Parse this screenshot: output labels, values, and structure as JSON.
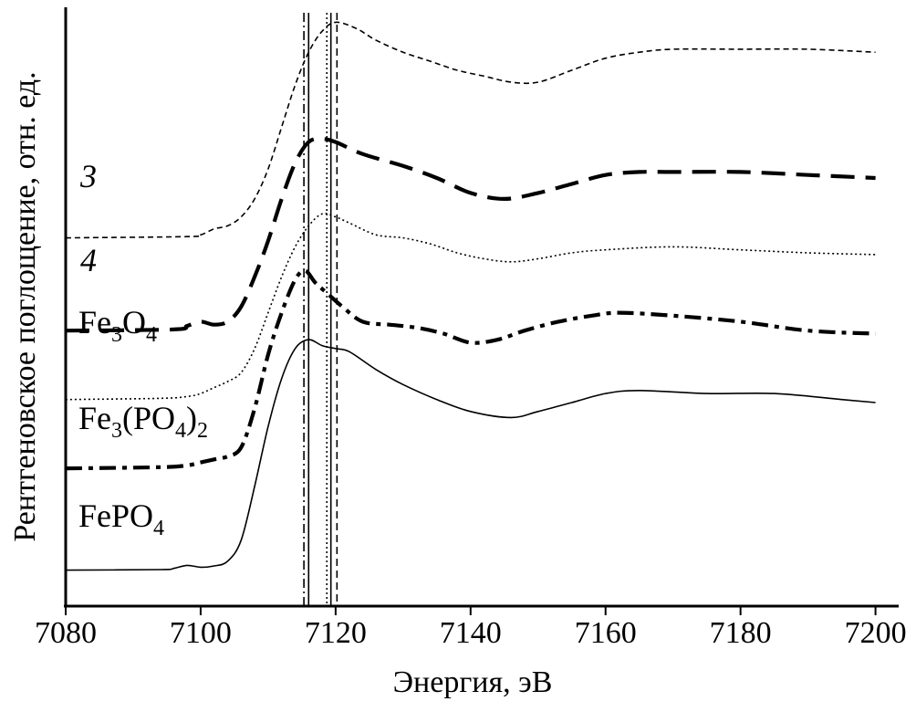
{
  "chart_data": {
    "type": "line",
    "title": "",
    "xlabel": "Энергия, эВ",
    "ylabel": "Рентгеновское поглощение, отн. ед.",
    "xlim": [
      7080,
      7201
    ],
    "xticks": [
      7080,
      7100,
      7120,
      7140,
      7160,
      7180,
      7200
    ],
    "grid": false,
    "legend": "none",
    "colors": {
      "line": "#000000",
      "background": "#ffffff"
    },
    "vertical_lines": [
      {
        "x": 7115.3,
        "style": "dash-dot"
      },
      {
        "x": 7116.0,
        "style": "solid"
      },
      {
        "x": 7118.7,
        "style": "dotted"
      },
      {
        "x": 7119.3,
        "style": "solid"
      },
      {
        "x": 7120.2,
        "style": "dashed"
      }
    ],
    "series": [
      {
        "name": "3",
        "label_style": "italic",
        "style": "short-dash",
        "points": [
          [
            7080,
            0.615
          ],
          [
            7098,
            0.617
          ],
          [
            7100,
            0.62
          ],
          [
            7102,
            0.63
          ],
          [
            7104,
            0.635
          ],
          [
            7106,
            0.65
          ],
          [
            7108,
            0.68
          ],
          [
            7110,
            0.73
          ],
          [
            7112,
            0.8
          ],
          [
            7114,
            0.87
          ],
          [
            7116,
            0.925
          ],
          [
            7118,
            0.96
          ],
          [
            7120,
            0.975
          ],
          [
            7123,
            0.965
          ],
          [
            7126,
            0.945
          ],
          [
            7130,
            0.925
          ],
          [
            7134,
            0.91
          ],
          [
            7138,
            0.895
          ],
          [
            7142,
            0.885
          ],
          [
            7146,
            0.875
          ],
          [
            7150,
            0.875
          ],
          [
            7155,
            0.895
          ],
          [
            7160,
            0.915
          ],
          [
            7165,
            0.925
          ],
          [
            7170,
            0.93
          ],
          [
            7180,
            0.93
          ],
          [
            7190,
            0.93
          ],
          [
            7200,
            0.925
          ]
        ]
      },
      {
        "name": "4",
        "label_style": "italic",
        "style": "long-dash",
        "points": [
          [
            7080,
            0.46
          ],
          [
            7096,
            0.462
          ],
          [
            7098,
            0.468
          ],
          [
            7100,
            0.475
          ],
          [
            7102,
            0.47
          ],
          [
            7104,
            0.475
          ],
          [
            7106,
            0.5
          ],
          [
            7108,
            0.55
          ],
          [
            7110,
            0.61
          ],
          [
            7112,
            0.68
          ],
          [
            7114,
            0.74
          ],
          [
            7116,
            0.775
          ],
          [
            7118,
            0.78
          ],
          [
            7120,
            0.775
          ],
          [
            7124,
            0.755
          ],
          [
            7130,
            0.735
          ],
          [
            7135,
            0.715
          ],
          [
            7140,
            0.69
          ],
          [
            7145,
            0.68
          ],
          [
            7150,
            0.69
          ],
          [
            7155,
            0.705
          ],
          [
            7160,
            0.72
          ],
          [
            7165,
            0.725
          ],
          [
            7170,
            0.725
          ],
          [
            7180,
            0.725
          ],
          [
            7190,
            0.72
          ],
          [
            7200,
            0.715
          ]
        ]
      },
      {
        "name": "Fe3O4",
        "label_style": "chem",
        "style": "dotted",
        "points": [
          [
            7080,
            0.345
          ],
          [
            7094,
            0.347
          ],
          [
            7098,
            0.35
          ],
          [
            7100,
            0.355
          ],
          [
            7102,
            0.365
          ],
          [
            7104,
            0.375
          ],
          [
            7106,
            0.39
          ],
          [
            7108,
            0.43
          ],
          [
            7110,
            0.49
          ],
          [
            7112,
            0.55
          ],
          [
            7114,
            0.6
          ],
          [
            7116,
            0.635
          ],
          [
            7118,
            0.655
          ],
          [
            7120,
            0.65
          ],
          [
            7122,
            0.64
          ],
          [
            7126,
            0.62
          ],
          [
            7130,
            0.615
          ],
          [
            7134,
            0.605
          ],
          [
            7138,
            0.59
          ],
          [
            7142,
            0.58
          ],
          [
            7146,
            0.575
          ],
          [
            7150,
            0.58
          ],
          [
            7155,
            0.59
          ],
          [
            7160,
            0.595
          ],
          [
            7170,
            0.6
          ],
          [
            7180,
            0.595
          ],
          [
            7190,
            0.59
          ],
          [
            7200,
            0.587
          ]
        ]
      },
      {
        "name": "Fe3(PO4)2",
        "label_style": "chem",
        "style": "dash-dot",
        "points": [
          [
            7080,
            0.23
          ],
          [
            7094,
            0.232
          ],
          [
            7098,
            0.235
          ],
          [
            7100,
            0.24
          ],
          [
            7102,
            0.245
          ],
          [
            7104,
            0.25
          ],
          [
            7106,
            0.265
          ],
          [
            7108,
            0.33
          ],
          [
            7110,
            0.42
          ],
          [
            7112,
            0.49
          ],
          [
            7114,
            0.545
          ],
          [
            7115.5,
            0.56
          ],
          [
            7117,
            0.54
          ],
          [
            7119,
            0.52
          ],
          [
            7121,
            0.5
          ],
          [
            7124,
            0.475
          ],
          [
            7128,
            0.47
          ],
          [
            7132,
            0.465
          ],
          [
            7136,
            0.455
          ],
          [
            7140,
            0.44
          ],
          [
            7144,
            0.445
          ],
          [
            7148,
            0.46
          ],
          [
            7153,
            0.475
          ],
          [
            7158,
            0.485
          ],
          [
            7162,
            0.49
          ],
          [
            7170,
            0.485
          ],
          [
            7180,
            0.475
          ],
          [
            7190,
            0.46
          ],
          [
            7200,
            0.455
          ]
        ]
      },
      {
        "name": "FePO4",
        "label_style": "chem",
        "style": "solid",
        "points": [
          [
            7080,
            0.06
          ],
          [
            7094,
            0.061
          ],
          [
            7096,
            0.063
          ],
          [
            7098,
            0.068
          ],
          [
            7100,
            0.065
          ],
          [
            7102,
            0.067
          ],
          [
            7104,
            0.075
          ],
          [
            7106,
            0.11
          ],
          [
            7108,
            0.2
          ],
          [
            7110,
            0.3
          ],
          [
            7112,
            0.38
          ],
          [
            7114,
            0.43
          ],
          [
            7116,
            0.445
          ],
          [
            7118,
            0.435
          ],
          [
            7120,
            0.43
          ],
          [
            7122,
            0.425
          ],
          [
            7126,
            0.395
          ],
          [
            7130,
            0.37
          ],
          [
            7135,
            0.345
          ],
          [
            7140,
            0.325
          ],
          [
            7146,
            0.315
          ],
          [
            7150,
            0.325
          ],
          [
            7155,
            0.34
          ],
          [
            7160,
            0.355
          ],
          [
            7165,
            0.36
          ],
          [
            7175,
            0.355
          ],
          [
            7185,
            0.355
          ],
          [
            7195,
            0.345
          ],
          [
            7200,
            0.34
          ]
        ]
      }
    ],
    "series_labels": [
      {
        "series": "3",
        "parts": [
          {
            "t": "3",
            "s": "n"
          }
        ]
      },
      {
        "series": "4",
        "parts": [
          {
            "t": "4",
            "s": "n"
          }
        ]
      },
      {
        "series": "Fe3O4",
        "parts": [
          {
            "t": "Fe",
            "s": "n"
          },
          {
            "t": "3",
            "s": "sub"
          },
          {
            "t": "O",
            "s": "n"
          },
          {
            "t": "4",
            "s": "sub"
          }
        ]
      },
      {
        "series": "Fe3(PO4)2",
        "parts": [
          {
            "t": "Fe",
            "s": "n"
          },
          {
            "t": "3",
            "s": "sub"
          },
          {
            "t": "(PO",
            "s": "n"
          },
          {
            "t": "4",
            "s": "sub"
          },
          {
            "t": ")",
            "s": "n"
          },
          {
            "t": "2",
            "s": "sub"
          }
        ]
      },
      {
        "series": "FePO4",
        "parts": [
          {
            "t": "FePO",
            "s": "n"
          },
          {
            "t": "4",
            "s": "sub"
          }
        ]
      }
    ]
  }
}
